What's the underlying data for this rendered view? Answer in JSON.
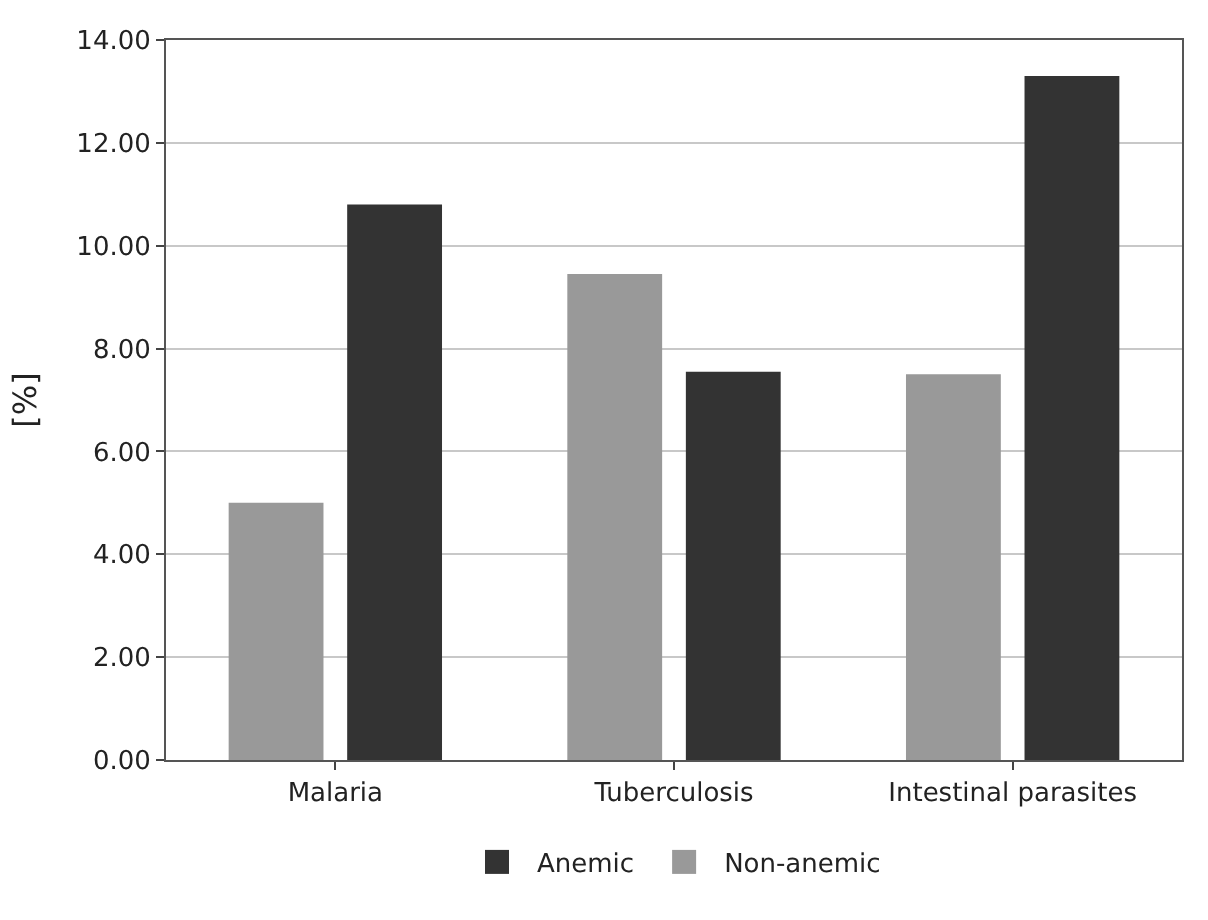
{
  "chart_data": {
    "type": "bar",
    "ylabel": "[%]",
    "categories": [
      "Malaria",
      "Tuberculosis",
      "Intestinal parasites"
    ],
    "series": [
      {
        "name": "Non-anemic",
        "color": "#999999",
        "values": [
          5.0,
          9.45,
          7.5
        ]
      },
      {
        "name": "Anemic",
        "color": "#333333",
        "values": [
          10.8,
          7.55,
          13.3
        ]
      }
    ],
    "ylim": [
      0,
      14
    ],
    "yticks": [
      {
        "value": 0,
        "label": "0.00"
      },
      {
        "value": 2,
        "label": "2.00"
      },
      {
        "value": 4,
        "label": "4.00"
      },
      {
        "value": 6,
        "label": "6.00"
      },
      {
        "value": 8,
        "label": "8.00"
      },
      {
        "value": 10,
        "label": "10.00"
      },
      {
        "value": 12,
        "label": "12.00"
      },
      {
        "value": 14,
        "label": "14.00"
      }
    ],
    "grid": "y",
    "legend": "bottom"
  }
}
